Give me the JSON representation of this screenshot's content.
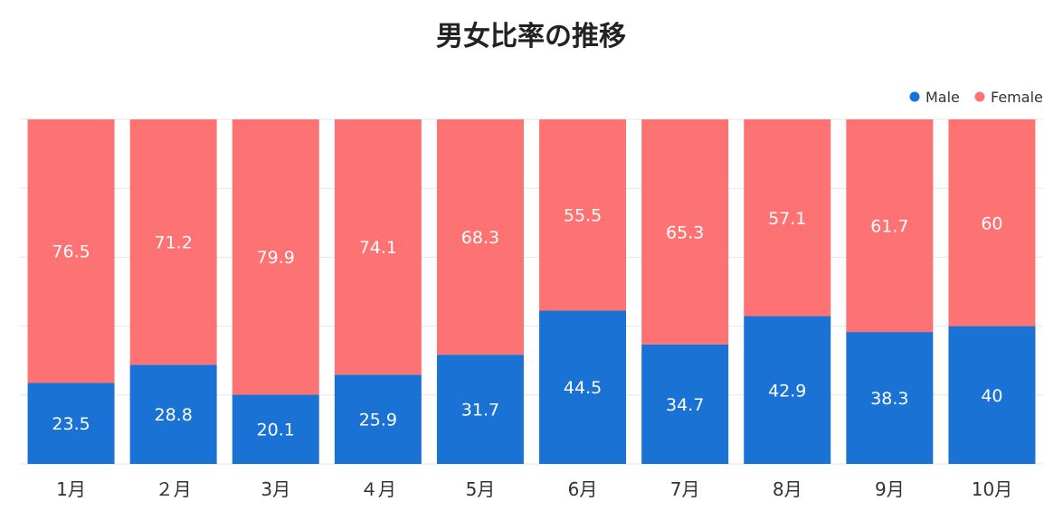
{
  "chart_data": {
    "type": "bar",
    "stacked": true,
    "title": "男女比率の推移",
    "xlabel": "",
    "ylabel": "",
    "ylim": [
      0,
      100
    ],
    "legend_position": "top-right",
    "grid": true,
    "categories": [
      "1月",
      "２月",
      "3月",
      "４月",
      "5月",
      "6月",
      "7月",
      "8月",
      "9月",
      "10月"
    ],
    "series": [
      {
        "name": "Male",
        "color": "#1a73d4",
        "values": [
          23.5,
          28.8,
          20.1,
          25.9,
          31.7,
          44.5,
          34.7,
          42.9,
          38.3,
          40
        ]
      },
      {
        "name": "Female",
        "color": "#fd7272",
        "values": [
          76.5,
          71.2,
          79.9,
          74.1,
          68.3,
          55.5,
          65.3,
          57.1,
          61.7,
          60
        ]
      }
    ]
  }
}
